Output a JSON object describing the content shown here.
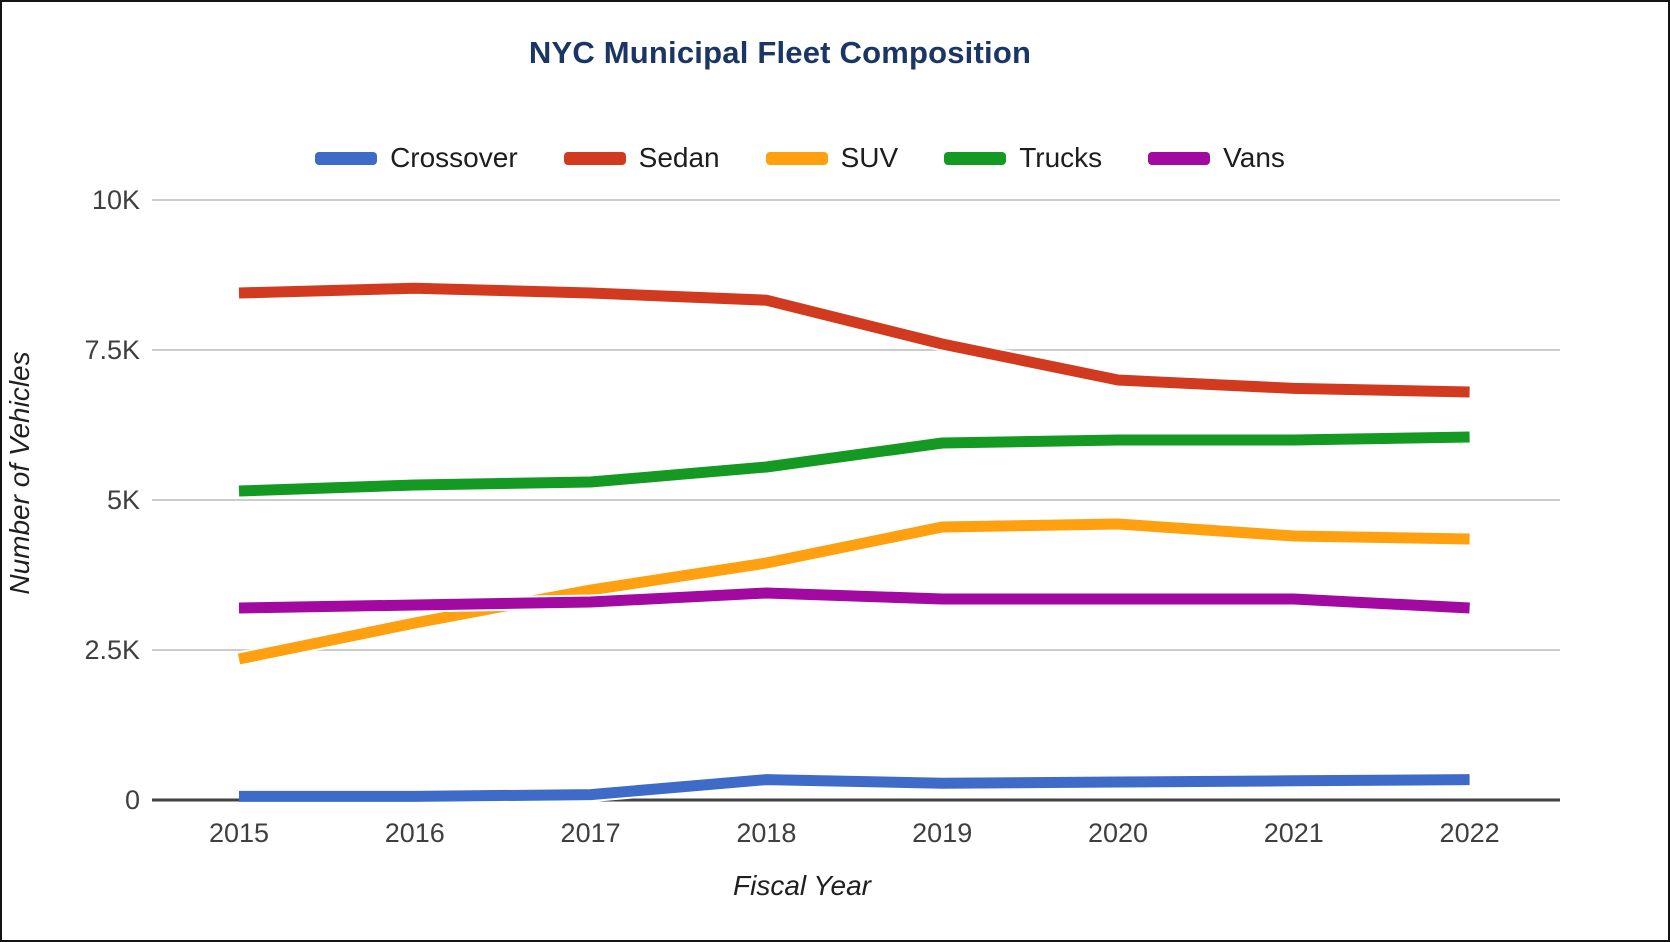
{
  "chart": {
    "title": "NYC Municipal Fleet Composition",
    "x_axis_title": "Fiscal Year",
    "y_axis_title": "Number of Vehicles"
  },
  "chart_data": {
    "type": "line",
    "title": "NYC Municipal Fleet Composition",
    "xlabel": "Fiscal Year",
    "ylabel": "Number of Vehicles",
    "categories": [
      "2015",
      "2016",
      "2017",
      "2018",
      "2019",
      "2020",
      "2021",
      "2022"
    ],
    "ylim": [
      0,
      10000
    ],
    "yticks": [
      {
        "value": 0,
        "label": "0"
      },
      {
        "value": 2500,
        "label": "2.5K"
      },
      {
        "value": 5000,
        "label": "5K"
      },
      {
        "value": 7500,
        "label": "7.5K"
      },
      {
        "value": 10000,
        "label": "10K"
      }
    ],
    "grid": true,
    "legend_position": "top",
    "series": [
      {
        "name": "Crossover",
        "color": "#3D6BC7",
        "values": [
          60,
          60,
          90,
          340,
          280,
          300,
          320,
          340
        ]
      },
      {
        "name": "Sedan",
        "color": "#D13A1E",
        "values": [
          8450,
          8530,
          8450,
          8330,
          7600,
          7000,
          6860,
          6800
        ]
      },
      {
        "name": "SUV",
        "color": "#FFA011",
        "values": [
          2350,
          2950,
          3500,
          3950,
          4550,
          4600,
          4400,
          4350
        ]
      },
      {
        "name": "Trucks",
        "color": "#149922",
        "values": [
          5150,
          5250,
          5300,
          5550,
          5950,
          6000,
          6000,
          6050
        ]
      },
      {
        "name": "Vans",
        "color": "#A109A0",
        "values": [
          3200,
          3250,
          3300,
          3450,
          3350,
          3350,
          3350,
          3200
        ]
      }
    ]
  },
  "colors": {
    "title_text": "#1B3665",
    "gridline": "#CCCCCC",
    "axis_line": "#424242",
    "tick_text": "#3F3F3F",
    "legend_text": "#1D1D1D"
  }
}
